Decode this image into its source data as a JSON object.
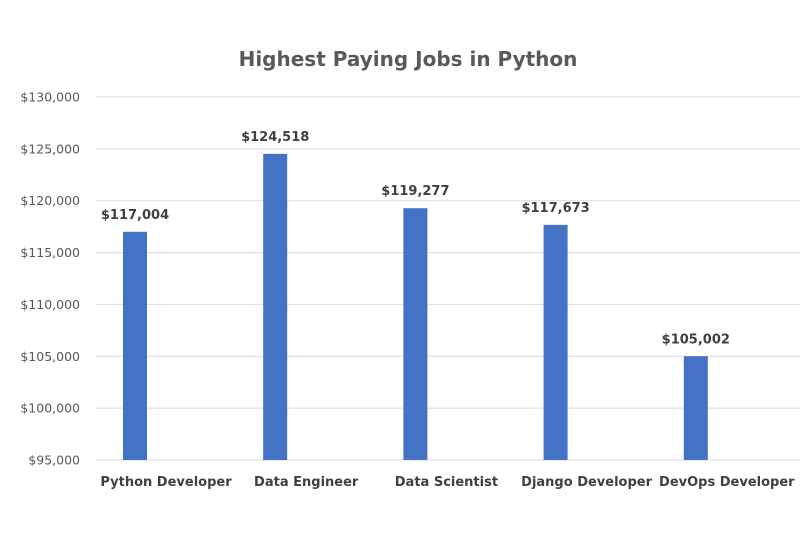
{
  "chart_data": {
    "type": "bar",
    "title": "Highest Paying Jobs in Python",
    "xlabel": "",
    "ylabel": "",
    "categories": [
      "Python Developer",
      "Data Engineer",
      "Data Scientist",
      "Django Developer",
      "DevOps Developer"
    ],
    "values": [
      117004,
      124518,
      119277,
      117673,
      105002
    ],
    "data_labels": [
      "$117,004",
      "$124,518",
      "$119,277",
      "$117,673",
      "$105,002"
    ],
    "ylim": [
      95000,
      130000
    ],
    "yticks": [
      95000,
      100000,
      105000,
      110000,
      115000,
      120000,
      125000,
      130000
    ],
    "ytick_labels": [
      "$95,000",
      "$100,000",
      "$105,000",
      "$110,000",
      "$115,000",
      "$120,000",
      "$125,000",
      "$130,000"
    ],
    "grid": true,
    "legend": "none",
    "bar_color": "#4472c4"
  }
}
